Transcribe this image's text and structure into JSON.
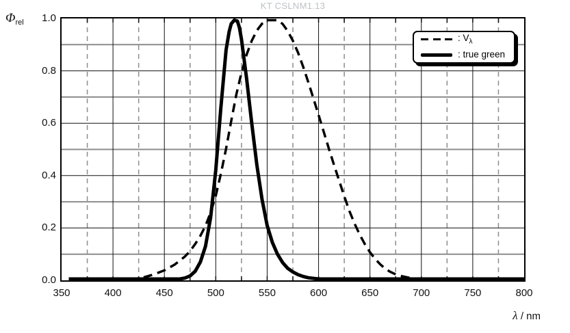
{
  "header": {
    "title": "KT CSLNM1.13"
  },
  "y_axis": {
    "symbol": "Φ",
    "symbol_sub": "rel",
    "ticks": [
      {
        "value": 1.0,
        "label": "1.0"
      },
      {
        "value": 0.8,
        "label": "0.8"
      },
      {
        "value": 0.6,
        "label": "0.6"
      },
      {
        "value": 0.4,
        "label": "0.4"
      },
      {
        "value": 0.2,
        "label": "0.2"
      },
      {
        "value": 0.0,
        "label": "0.0"
      }
    ]
  },
  "x_axis": {
    "symbol": "λ",
    "suffix": " / nm",
    "ticks": [
      {
        "value": 350,
        "label": "350"
      },
      {
        "value": 400,
        "label": "400"
      },
      {
        "value": 450,
        "label": "450"
      },
      {
        "value": 500,
        "label": "500"
      },
      {
        "value": 550,
        "label": "550"
      },
      {
        "value": 600,
        "label": "600"
      },
      {
        "value": 650,
        "label": "650"
      },
      {
        "value": 700,
        "label": "700"
      },
      {
        "value": 750,
        "label": "750"
      },
      {
        "value": 800,
        "label": "800"
      }
    ]
  },
  "legend": {
    "entries": [
      {
        "label": ": V",
        "label_sub": "λ",
        "style": "dashed",
        "sample_class": "sample sample-dashed"
      },
      {
        "label": ": true green",
        "label_sub": "",
        "style": "solid",
        "sample_class": "sample sample-solid"
      }
    ]
  },
  "colors": {
    "curve": "#000000",
    "grid_major": "#111111",
    "grid_minor": "#8c8c8c",
    "axis_text": "#111111",
    "title_text": "#bdc1c5",
    "background": "#ffffff"
  },
  "chart_data": {
    "type": "line",
    "title": "KT CSLNM1.13",
    "xlabel": "λ / nm",
    "ylabel": "Φ_rel",
    "xlim": [
      350,
      800
    ],
    "ylim": [
      0,
      1.0
    ],
    "x_major_step": 50,
    "x_minor_step": 25,
    "y_grid_step": 0.1,
    "grid": true,
    "legend_position": "upper right",
    "series": [
      {
        "name": "Vλ",
        "line": "dashed",
        "width": 3.5,
        "dash": "13 8",
        "points": [
          [
            360,
            0
          ],
          [
            390,
            0.0001
          ],
          [
            400,
            0.0004
          ],
          [
            410,
            0.0012
          ],
          [
            420,
            0.004
          ],
          [
            430,
            0.0116
          ],
          [
            440,
            0.023
          ],
          [
            450,
            0.038
          ],
          [
            460,
            0.06
          ],
          [
            470,
            0.091
          ],
          [
            475,
            0.112
          ],
          [
            480,
            0.139
          ],
          [
            485,
            0.17
          ],
          [
            490,
            0.208
          ],
          [
            495,
            0.259
          ],
          [
            500,
            0.323
          ],
          [
            505,
            0.407
          ],
          [
            510,
            0.503
          ],
          [
            515,
            0.608
          ],
          [
            520,
            0.71
          ],
          [
            525,
            0.793
          ],
          [
            530,
            0.862
          ],
          [
            535,
            0.915
          ],
          [
            540,
            0.954
          ],
          [
            545,
            0.98
          ],
          [
            550,
            0.995
          ],
          [
            555,
            1.0
          ],
          [
            560,
            0.995
          ],
          [
            565,
            0.979
          ],
          [
            570,
            0.952
          ],
          [
            575,
            0.915
          ],
          [
            580,
            0.87
          ],
          [
            585,
            0.816
          ],
          [
            590,
            0.757
          ],
          [
            595,
            0.695
          ],
          [
            600,
            0.631
          ],
          [
            605,
            0.567
          ],
          [
            610,
            0.503
          ],
          [
            615,
            0.441
          ],
          [
            620,
            0.381
          ],
          [
            625,
            0.321
          ],
          [
            630,
            0.265
          ],
          [
            635,
            0.217
          ],
          [
            640,
            0.175
          ],
          [
            645,
            0.138
          ],
          [
            650,
            0.107
          ],
          [
            655,
            0.082
          ],
          [
            660,
            0.061
          ],
          [
            665,
            0.044
          ],
          [
            670,
            0.032
          ],
          [
            675,
            0.023
          ],
          [
            680,
            0.017
          ],
          [
            690,
            0.0082
          ],
          [
            700,
            0.0041
          ],
          [
            710,
            0.0021
          ],
          [
            720,
            0.001
          ],
          [
            740,
            0.0003
          ],
          [
            760,
            0.0001
          ],
          [
            780,
            0
          ],
          [
            800,
            0
          ]
        ]
      },
      {
        "name": "true green",
        "line": "solid",
        "width": 5,
        "dash": "",
        "points": [
          [
            357,
            0
          ],
          [
            400,
            0
          ],
          [
            430,
            0
          ],
          [
            445,
            0.001
          ],
          [
            455,
            0.002
          ],
          [
            460,
            0.003
          ],
          [
            465,
            0.005
          ],
          [
            470,
            0.009
          ],
          [
            475,
            0.017
          ],
          [
            480,
            0.035
          ],
          [
            485,
            0.07
          ],
          [
            490,
            0.13
          ],
          [
            495,
            0.24
          ],
          [
            500,
            0.42
          ],
          [
            505,
            0.66
          ],
          [
            510,
            0.88
          ],
          [
            513,
            0.95
          ],
          [
            515,
            0.98
          ],
          [
            518,
            1.0
          ],
          [
            521,
            0.99
          ],
          [
            523,
            0.965
          ],
          [
            525,
            0.92
          ],
          [
            530,
            0.77
          ],
          [
            535,
            0.6
          ],
          [
            540,
            0.44
          ],
          [
            545,
            0.31
          ],
          [
            550,
            0.21
          ],
          [
            555,
            0.145
          ],
          [
            560,
            0.1
          ],
          [
            565,
            0.068
          ],
          [
            570,
            0.046
          ],
          [
            575,
            0.032
          ],
          [
            580,
            0.022
          ],
          [
            585,
            0.015
          ],
          [
            590,
            0.01
          ],
          [
            600,
            0.005
          ],
          [
            610,
            0.003
          ],
          [
            620,
            0.002
          ],
          [
            640,
            0.001
          ],
          [
            660,
            0.0005
          ],
          [
            700,
            0
          ],
          [
            800,
            0
          ]
        ]
      }
    ]
  }
}
